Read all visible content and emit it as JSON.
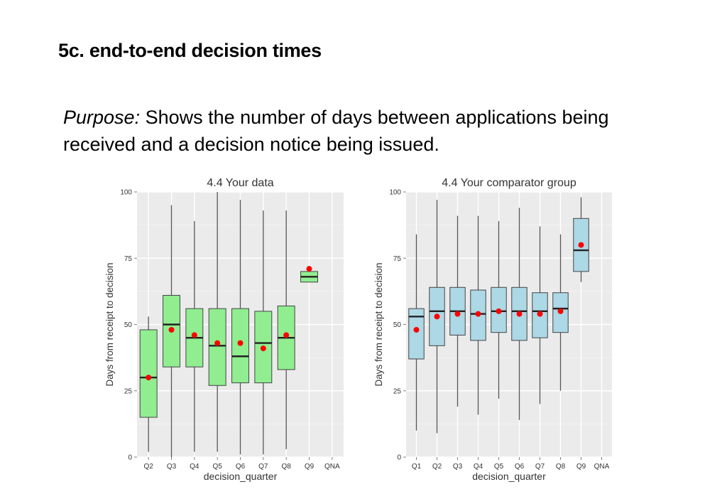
{
  "slide": {
    "title": "5c. end-to-end decision times",
    "purpose_lead": "Purpose:",
    "purpose_text": "Shows the number of days between applications being received and a decision notice being issued."
  },
  "colors": {
    "panel_bg": "#ebebeb",
    "grid": "#ffffff",
    "box_left": "#90ee90",
    "box_right": "#add8e6",
    "mean_dot": "#ff0000",
    "whisker": "#555555"
  },
  "chart_data": [
    {
      "type": "box",
      "title": "4.4 Your data",
      "xlabel": "decision_quarter",
      "ylabel": "Days from receipt to decision",
      "ylim": [
        0,
        100
      ],
      "yticks": [
        0,
        25,
        50,
        75,
        100
      ],
      "grid": true,
      "fill": "#90ee90",
      "categories": [
        "Q2",
        "Q3",
        "Q4",
        "Q5",
        "Q6",
        "Q7",
        "Q8",
        "Q9",
        "QNA"
      ],
      "boxes": [
        {
          "x": "Q2",
          "min": 2,
          "q1": 15,
          "median": 30,
          "q3": 48,
          "max": 53,
          "mean": 30
        },
        {
          "x": "Q3",
          "min": 0,
          "q1": 34,
          "median": 50,
          "q3": 61,
          "max": 95,
          "mean": 48
        },
        {
          "x": "Q4",
          "min": 2,
          "q1": 34,
          "median": 45,
          "q3": 56,
          "max": 89,
          "mean": 46
        },
        {
          "x": "Q5",
          "min": 2,
          "q1": 27,
          "median": 42,
          "q3": 56,
          "max": 100,
          "mean": 43
        },
        {
          "x": "Q6",
          "min": 1,
          "q1": 28,
          "median": 38,
          "q3": 56,
          "max": 97,
          "mean": 43
        },
        {
          "x": "Q7",
          "min": 1,
          "q1": 28,
          "median": 43,
          "q3": 55,
          "max": 93,
          "mean": 41
        },
        {
          "x": "Q8",
          "min": 3,
          "q1": 33,
          "median": 45,
          "q3": 57,
          "max": 93,
          "mean": 46
        },
        {
          "x": "Q9",
          "min": 66,
          "q1": 66,
          "median": 68,
          "q3": 70,
          "max": 70,
          "mean": 71
        }
      ]
    },
    {
      "type": "box",
      "title": "4.4 Your comparator group",
      "xlabel": "decision_quarter",
      "ylabel": "Days from receipt to decision",
      "ylim": [
        0,
        100
      ],
      "yticks": [
        0,
        25,
        50,
        75,
        100
      ],
      "grid": true,
      "fill": "#add8e6",
      "categories": [
        "Q1",
        "Q2",
        "Q3",
        "Q4",
        "Q5",
        "Q6",
        "Q7",
        "Q8",
        "Q9",
        "QNA"
      ],
      "boxes": [
        {
          "x": "Q1",
          "min": 10,
          "q1": 37,
          "median": 53,
          "q3": 56,
          "max": 84,
          "mean": 48
        },
        {
          "x": "Q2",
          "min": 9,
          "q1": 42,
          "median": 55,
          "q3": 64,
          "max": 97,
          "mean": 53
        },
        {
          "x": "Q3",
          "min": 19,
          "q1": 46,
          "median": 55,
          "q3": 64,
          "max": 91,
          "mean": 54
        },
        {
          "x": "Q4",
          "min": 16,
          "q1": 44,
          "median": 54,
          "q3": 63,
          "max": 91,
          "mean": 54
        },
        {
          "x": "Q5",
          "min": 22,
          "q1": 47,
          "median": 55,
          "q3": 64,
          "max": 89,
          "mean": 55
        },
        {
          "x": "Q6",
          "min": 14,
          "q1": 44,
          "median": 55,
          "q3": 64,
          "max": 94,
          "mean": 54
        },
        {
          "x": "Q7",
          "min": 20,
          "q1": 45,
          "median": 55,
          "q3": 62,
          "max": 87,
          "mean": 54
        },
        {
          "x": "Q8",
          "min": 25,
          "q1": 47,
          "median": 56,
          "q3": 62,
          "max": 84,
          "mean": 55
        },
        {
          "x": "Q9",
          "min": 66,
          "q1": 70,
          "median": 78,
          "q3": 90,
          "max": 98,
          "mean": 80
        }
      ]
    }
  ]
}
